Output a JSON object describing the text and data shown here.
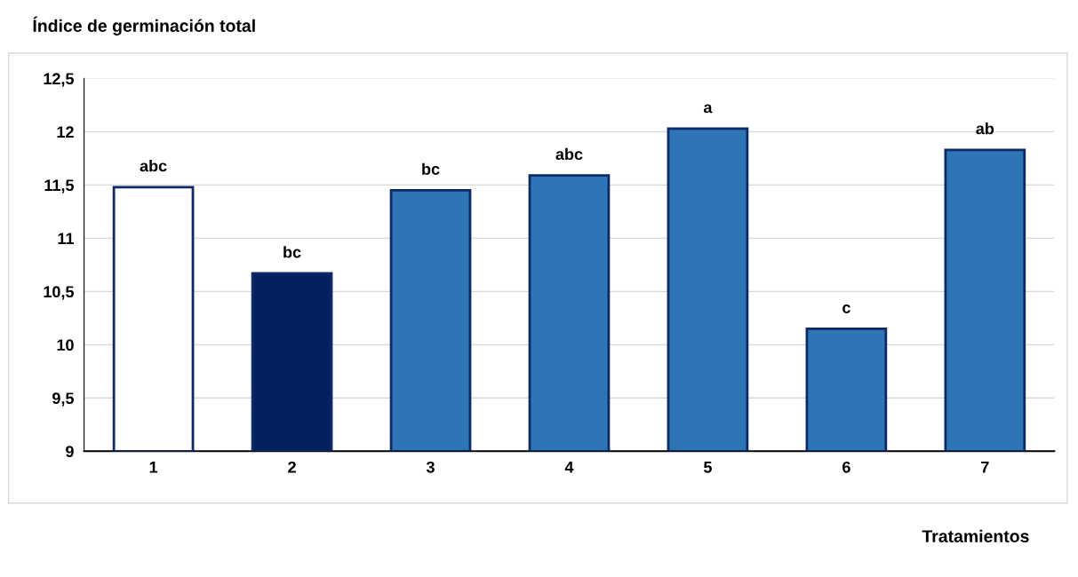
{
  "chart_data": {
    "type": "bar",
    "title": "Índice de germinación total",
    "xlabel": "Tratamientos",
    "categories": [
      "1",
      "2",
      "3",
      "4",
      "5",
      "6",
      "7"
    ],
    "values": [
      11.48,
      10.67,
      11.45,
      11.59,
      12.03,
      10.15,
      11.83
    ],
    "colors": [
      "#ffffff",
      "#042060",
      "#2e75b6",
      "#2e75b6",
      "#2e75b6",
      "#2e75b6",
      "#2e75b6"
    ],
    "ylim": [
      9,
      12.5
    ],
    "yticks": [
      9,
      {
        "value": 9.5,
        "label": "9,5"
      },
      10,
      {
        "value": 10.5,
        "label": "10,5"
      },
      11,
      {
        "value": 11.5,
        "label": "11,5"
      },
      12,
      {
        "value": 12.5,
        "label": "12,5"
      }
    ],
    "grid": "y",
    "legend": false,
    "annotations": [
      {
        "text": "abc",
        "x": "1",
        "y": 11.48
      },
      {
        "text": "bc",
        "x": "2",
        "y": 10.67
      },
      {
        "text": "bc",
        "x": "3",
        "y": 11.45
      },
      {
        "text": "abc",
        "x": "4",
        "y": 11.59
      },
      {
        "text": "a",
        "x": "5",
        "y": 12.03
      },
      {
        "text": "c",
        "x": "6",
        "y": 10.15
      },
      {
        "text": "ab",
        "x": "7",
        "y": 11.83
      }
    ]
  }
}
